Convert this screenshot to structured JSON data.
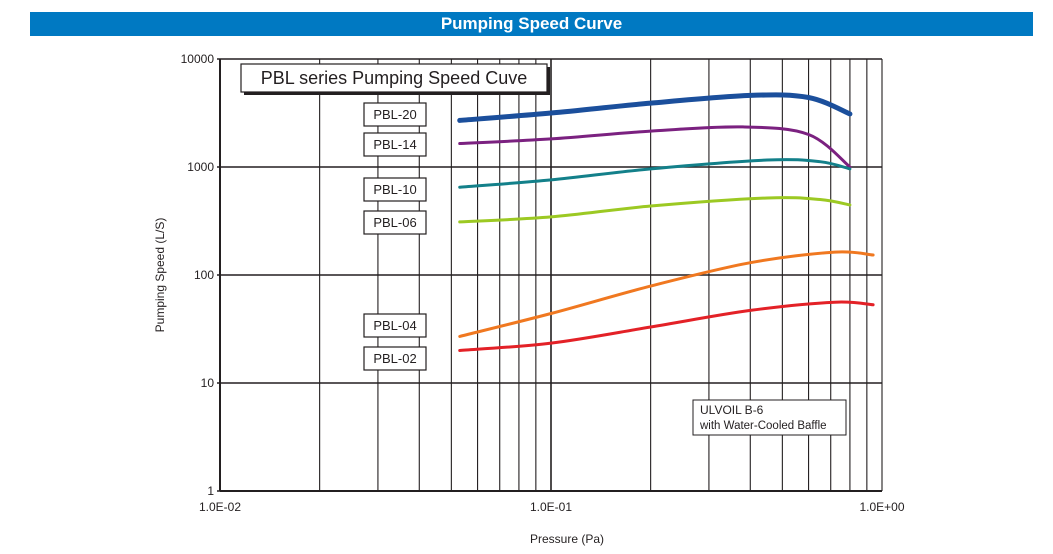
{
  "header": {
    "title": "Pumping Speed Curve"
  },
  "chart_data": {
    "type": "line",
    "title": "PBL series Pumping Speed Cuve",
    "xlabel": "Pressure (Pa)",
    "ylabel": "Pumping Speed (L/S)",
    "xscale": "log",
    "yscale": "log",
    "xlim": [
      0.01,
      1.0
    ],
    "ylim": [
      1,
      10000
    ],
    "x_tick_labels": [
      "1.0E-02",
      "1.0E-01",
      "1.0E+00"
    ],
    "x_ticks": [
      0.01,
      0.1,
      1.0
    ],
    "y_tick_labels": [
      "10000",
      "1000",
      "100",
      "10",
      "1"
    ],
    "y_ticks": [
      10000,
      1000,
      100,
      10,
      1
    ],
    "grid": true,
    "annotation": [
      "ULVOIL B-6",
      "with Water-Cooled Baffle"
    ],
    "legend_placement": "left (labeled boxes)",
    "series": [
      {
        "name": "PBL-20",
        "color": "#1b4f9c",
        "width": 5,
        "points": [
          [
            0.053,
            2700
          ],
          [
            0.1,
            3160
          ],
          [
            0.2,
            3900
          ],
          [
            0.4,
            4600
          ],
          [
            0.6,
            4400
          ],
          [
            0.8,
            3100
          ]
        ]
      },
      {
        "name": "PBL-14",
        "color": "#7b2180",
        "width": 3,
        "points": [
          [
            0.053,
            1650
          ],
          [
            0.1,
            1820
          ],
          [
            0.2,
            2150
          ],
          [
            0.38,
            2350
          ],
          [
            0.6,
            2000
          ],
          [
            0.8,
            1000
          ]
        ]
      },
      {
        "name": "PBL-10",
        "color": "#13808a",
        "width": 3,
        "points": [
          [
            0.053,
            650
          ],
          [
            0.1,
            760
          ],
          [
            0.2,
            960
          ],
          [
            0.45,
            1160
          ],
          [
            0.65,
            1120
          ],
          [
            0.8,
            960
          ]
        ]
      },
      {
        "name": "PBL-06",
        "color": "#9cc923",
        "width": 3,
        "points": [
          [
            0.053,
            310
          ],
          [
            0.1,
            345
          ],
          [
            0.2,
            435
          ],
          [
            0.45,
            517
          ],
          [
            0.65,
            500
          ],
          [
            0.8,
            445
          ]
        ]
      },
      {
        "name": "PBL-04",
        "color": "#f07820",
        "width": 3,
        "points": [
          [
            0.053,
            27
          ],
          [
            0.1,
            44
          ],
          [
            0.2,
            79
          ],
          [
            0.4,
            130
          ],
          [
            0.72,
            163
          ],
          [
            0.94,
            153
          ]
        ]
      },
      {
        "name": "PBL-02",
        "color": "#e32127",
        "width": 3,
        "points": [
          [
            0.053,
            20
          ],
          [
            0.1,
            23.4
          ],
          [
            0.2,
            33
          ],
          [
            0.4,
            47
          ],
          [
            0.72,
            56
          ],
          [
            0.94,
            53
          ]
        ]
      }
    ]
  }
}
